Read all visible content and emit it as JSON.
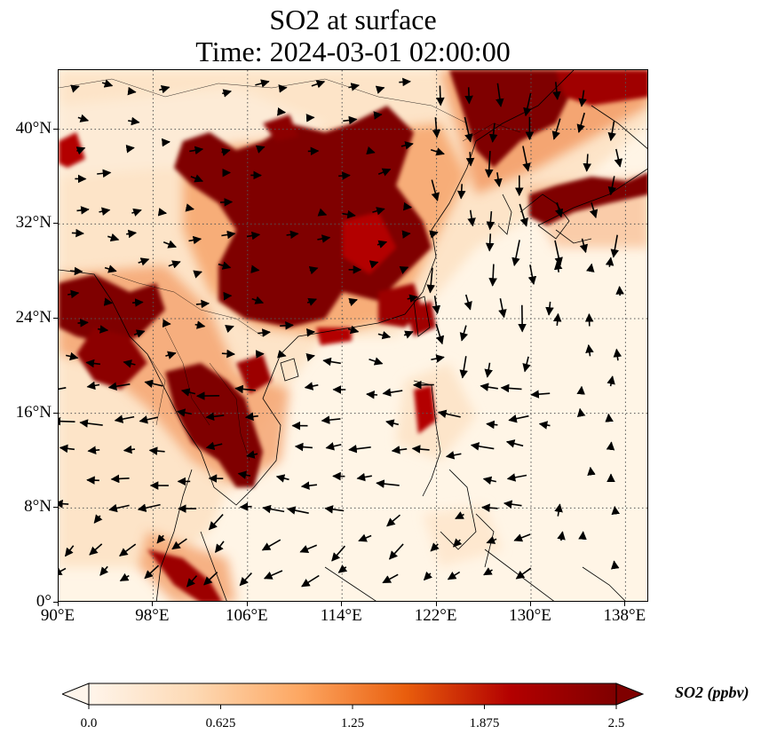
{
  "title": {
    "line1": "SO2 at surface",
    "line2": "Time: 2024-03-01 02:00:00"
  },
  "map": {
    "lon_range": [
      90,
      140
    ],
    "lat_range": [
      0,
      45
    ],
    "lat_ticks": [
      {
        "value": 0,
        "label": "0°"
      },
      {
        "value": 8,
        "label": "8°N"
      },
      {
        "value": 16,
        "label": "16°N"
      },
      {
        "value": 24,
        "label": "24°N"
      },
      {
        "value": 32,
        "label": "32°N"
      },
      {
        "value": 40,
        "label": "40°N"
      }
    ],
    "lon_ticks": [
      {
        "value": 90,
        "label": "90°E"
      },
      {
        "value": 98,
        "label": "98°E"
      },
      {
        "value": 106,
        "label": "106°E"
      },
      {
        "value": 114,
        "label": "114°E"
      },
      {
        "value": 122,
        "label": "122°E"
      },
      {
        "value": 130,
        "label": "130°E"
      },
      {
        "value": 138,
        "label": "138°E"
      }
    ],
    "gridlines": "dotted",
    "field": "SO2 concentration (shaded)",
    "vectors": "wind arrows"
  },
  "colorbar": {
    "label": "SO2 (ppbv)",
    "range": [
      0.0,
      2.5
    ],
    "ticks": [
      "0.0",
      "0.625",
      "1.25",
      "1.875",
      "2.5"
    ],
    "extend": "both",
    "colors": [
      "#fff5eb",
      "#fdd9b4",
      "#fda762",
      "#e95e0d",
      "#b30000",
      "#7f0000"
    ]
  }
}
